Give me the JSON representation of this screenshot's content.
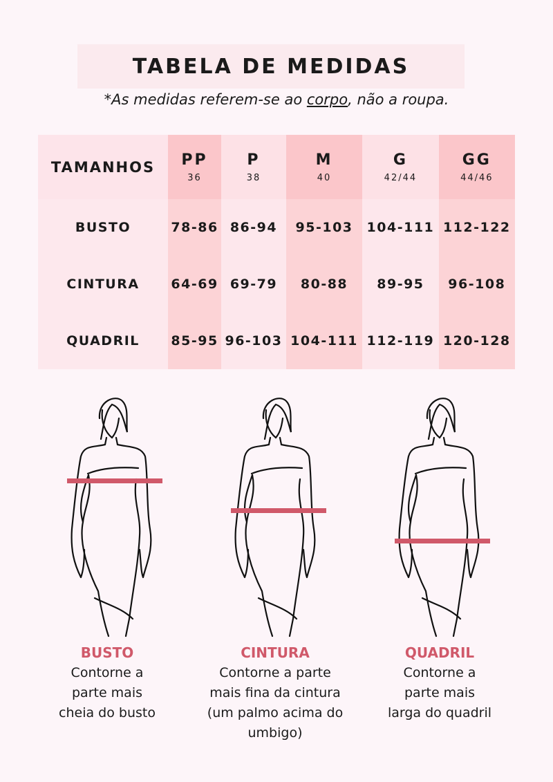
{
  "title": "TABELA DE MEDIDAS",
  "note": {
    "prefix": "*As medidas referem-se ao ",
    "underlined": "corpo",
    "suffix": ", não a roupa."
  },
  "table": {
    "header_label": "TAMANHOS",
    "sizes": [
      {
        "size": "PP",
        "number": "36"
      },
      {
        "size": "P",
        "number": "38"
      },
      {
        "size": "M",
        "number": "40"
      },
      {
        "size": "G",
        "number": "42/44"
      },
      {
        "size": "GG",
        "number": "44/46"
      }
    ],
    "rows": [
      {
        "label": "BUSTO",
        "values": [
          "78-86",
          "86-94",
          "95-103",
          "104-111",
          "112-122"
        ]
      },
      {
        "label": "CINTURA",
        "values": [
          "64-69",
          "69-79",
          "80-88",
          "89-95",
          "96-108"
        ]
      },
      {
        "label": "QUADRIL",
        "values": [
          "85-95",
          "96-103",
          "104-111",
          "112-119",
          "120-128"
        ]
      }
    ]
  },
  "accent_color": "#d0596a",
  "figures": [
    {
      "title": "BUSTO",
      "lines": [
        "Contorne a",
        "parte mais",
        "cheia do busto"
      ]
    },
    {
      "title": "CINTURA",
      "lines": [
        "Contorne a parte",
        "mais fina da cintura",
        "(um palmo acima do umbigo)"
      ]
    },
    {
      "title": "QUADRIL",
      "lines": [
        "Contorne a",
        "parte mais",
        "larga do quadril"
      ]
    }
  ]
}
